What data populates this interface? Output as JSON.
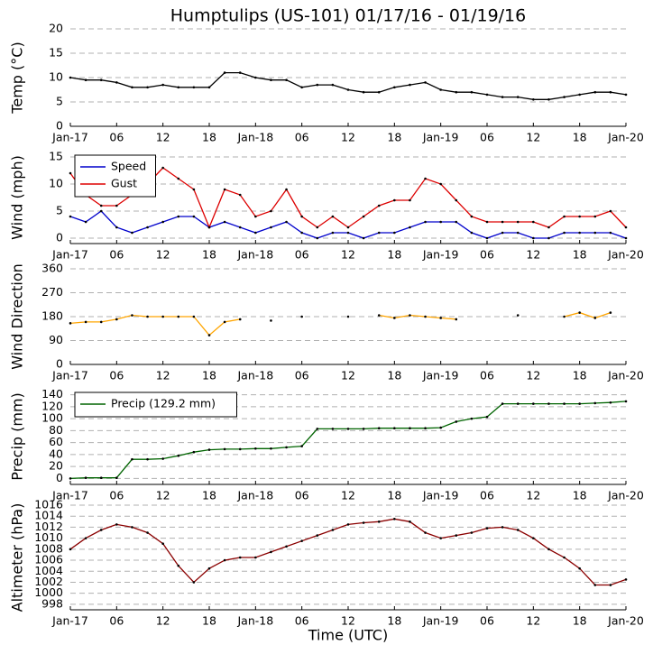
{
  "title": "Humptulips (US-101) 01/17/16 - 01/19/16",
  "chart_data": [
    {
      "type": "line",
      "ylabel": "Temp (°C)",
      "ylim": [
        0,
        20
      ],
      "yticks": [
        0,
        5,
        10,
        15,
        20
      ],
      "grid": true,
      "xlim": [
        0,
        72
      ],
      "xticks": [
        {
          "value": 0,
          "label": "Jan-17"
        },
        {
          "value": 6,
          "label": "06"
        },
        {
          "value": 12,
          "label": "12"
        },
        {
          "value": 18,
          "label": "18"
        },
        {
          "value": 24,
          "label": "Jan-18"
        },
        {
          "value": 30,
          "label": "06"
        },
        {
          "value": 36,
          "label": "12"
        },
        {
          "value": 42,
          "label": "18"
        },
        {
          "value": 48,
          "label": "Jan-19"
        },
        {
          "value": 54,
          "label": "06"
        },
        {
          "value": 60,
          "label": "12"
        },
        {
          "value": 66,
          "label": "18"
        },
        {
          "value": 72,
          "label": "Jan-20"
        }
      ],
      "x": [
        0,
        2,
        4,
        6,
        8,
        10,
        12,
        14,
        16,
        18,
        20,
        22,
        24,
        26,
        28,
        30,
        32,
        34,
        36,
        38,
        40,
        42,
        44,
        46,
        48,
        50,
        52,
        54,
        56,
        58,
        60,
        62,
        64,
        66,
        68,
        70,
        72
      ],
      "series": [
        {
          "color": "#000000",
          "values": [
            10,
            9.5,
            9.5,
            9,
            8,
            8,
            8.5,
            8,
            8,
            8,
            11,
            11,
            10,
            9.5,
            9.5,
            8,
            8.5,
            8.5,
            7.5,
            7,
            7,
            8,
            8.5,
            9,
            7.5,
            7,
            7,
            6.5,
            6,
            6,
            5.5,
            5.5,
            6,
            6.5,
            7,
            7,
            6.5
          ]
        }
      ]
    },
    {
      "type": "line",
      "ylabel": "Wind (mph)",
      "ylim": [
        -1,
        16
      ],
      "yticks": [
        0,
        5,
        10,
        15
      ],
      "grid": true,
      "xlim": [
        0,
        72
      ],
      "legend": "upper left",
      "xticks": [
        {
          "value": 0,
          "label": "Jan-17"
        },
        {
          "value": 6,
          "label": "06"
        },
        {
          "value": 12,
          "label": "12"
        },
        {
          "value": 18,
          "label": "18"
        },
        {
          "value": 24,
          "label": "Jan-18"
        },
        {
          "value": 30,
          "label": "06"
        },
        {
          "value": 36,
          "label": "12"
        },
        {
          "value": 42,
          "label": "18"
        },
        {
          "value": 48,
          "label": "Jan-19"
        },
        {
          "value": 54,
          "label": "06"
        },
        {
          "value": 60,
          "label": "12"
        },
        {
          "value": 66,
          "label": "18"
        },
        {
          "value": 72,
          "label": "Jan-20"
        }
      ],
      "x": [
        0,
        2,
        4,
        6,
        8,
        10,
        12,
        14,
        16,
        18,
        20,
        22,
        24,
        26,
        28,
        30,
        32,
        34,
        36,
        38,
        40,
        42,
        44,
        46,
        48,
        50,
        52,
        54,
        56,
        58,
        60,
        62,
        64,
        66,
        68,
        70,
        72
      ],
      "series": [
        {
          "name": "Speed",
          "color": "#0000cc",
          "values": [
            4,
            3,
            5,
            2,
            1,
            2,
            3,
            4,
            4,
            2,
            3,
            2,
            1,
            2,
            3,
            1,
            0,
            1,
            1,
            0,
            1,
            1,
            2,
            3,
            3,
            3,
            1,
            0,
            1,
            1,
            0,
            0,
            1,
            1,
            1,
            1,
            0
          ]
        },
        {
          "name": "Gust",
          "color": "#dd0000",
          "values": [
            12,
            8,
            6,
            6,
            8,
            10,
            13,
            11,
            9,
            2,
            9,
            8,
            4,
            5,
            9,
            4,
            2,
            4,
            2,
            4,
            6,
            7,
            7,
            11,
            10,
            7,
            4,
            3,
            3,
            3,
            3,
            2,
            4,
            4,
            4,
            5,
            2
          ]
        }
      ]
    },
    {
      "type": "line",
      "ylabel": "Wind Direction",
      "ylim": [
        0,
        360
      ],
      "yticks": [
        0,
        90,
        180,
        270,
        360
      ],
      "grid": true,
      "xlim": [
        0,
        72
      ],
      "xticks": [
        {
          "value": 0,
          "label": "Jan-17"
        },
        {
          "value": 6,
          "label": "06"
        },
        {
          "value": 12,
          "label": "12"
        },
        {
          "value": 18,
          "label": "18"
        },
        {
          "value": 24,
          "label": "Jan-18"
        },
        {
          "value": 30,
          "label": "06"
        },
        {
          "value": 36,
          "label": "12"
        },
        {
          "value": 42,
          "label": "18"
        },
        {
          "value": 48,
          "label": "Jan-19"
        },
        {
          "value": 54,
          "label": "06"
        },
        {
          "value": 60,
          "label": "12"
        },
        {
          "value": 66,
          "label": "18"
        },
        {
          "value": 72,
          "label": "Jan-20"
        }
      ],
      "x": [
        0,
        2,
        4,
        6,
        8,
        10,
        12,
        14,
        16,
        18,
        20,
        22,
        24,
        26,
        28,
        30,
        32,
        34,
        36,
        38,
        40,
        42,
        44,
        46,
        48,
        50,
        52,
        54,
        56,
        58,
        60,
        62,
        64,
        66,
        68,
        70,
        72
      ],
      "series": [
        {
          "color": "#ffa500",
          "values": [
            155,
            160,
            160,
            170,
            185,
            180,
            180,
            180,
            180,
            110,
            160,
            170,
            null,
            165,
            null,
            180,
            null,
            null,
            180,
            null,
            185,
            175,
            185,
            180,
            175,
            170,
            null,
            null,
            null,
            185,
            null,
            null,
            180,
            195,
            175,
            195,
            null
          ]
        }
      ]
    },
    {
      "type": "line",
      "ylabel": "Precip (mm)",
      "ylim": [
        -10,
        150
      ],
      "yticks": [
        0,
        20,
        40,
        60,
        80,
        100,
        120,
        140
      ],
      "grid": true,
      "xlim": [
        0,
        72
      ],
      "legend": "upper left",
      "xticks": [
        {
          "value": 0,
          "label": "Jan-17"
        },
        {
          "value": 6,
          "label": "06"
        },
        {
          "value": 12,
          "label": "12"
        },
        {
          "value": 18,
          "label": "18"
        },
        {
          "value": 24,
          "label": "Jan-18"
        },
        {
          "value": 30,
          "label": "06"
        },
        {
          "value": 36,
          "label": "12"
        },
        {
          "value": 42,
          "label": "18"
        },
        {
          "value": 48,
          "label": "Jan-19"
        },
        {
          "value": 54,
          "label": "06"
        },
        {
          "value": 60,
          "label": "12"
        },
        {
          "value": 66,
          "label": "18"
        },
        {
          "value": 72,
          "label": "Jan-20"
        }
      ],
      "x": [
        0,
        2,
        4,
        6,
        8,
        10,
        12,
        14,
        16,
        18,
        20,
        22,
        24,
        26,
        28,
        30,
        32,
        34,
        36,
        38,
        40,
        42,
        44,
        46,
        48,
        50,
        52,
        54,
        56,
        58,
        60,
        62,
        64,
        66,
        68,
        70,
        72
      ],
      "series": [
        {
          "name": "Precip (129.2 mm)",
          "color": "#006400",
          "values": [
            0,
            1,
            1,
            1,
            32,
            32,
            33,
            38,
            44,
            48,
            49,
            49,
            50,
            50,
            52,
            54,
            83,
            83,
            83,
            83,
            84,
            84,
            84,
            84,
            85,
            95,
            100,
            103,
            125,
            125,
            125,
            125,
            125,
            125,
            126,
            127,
            129
          ]
        }
      ]
    },
    {
      "type": "line",
      "ylabel": "Altimeter (hPa)",
      "xlabel": "Time (UTC)",
      "ylim": [
        997,
        1016
      ],
      "yticks": [
        998,
        1000,
        1002,
        1004,
        1006,
        1008,
        1010,
        1012,
        1014,
        1016
      ],
      "grid": true,
      "xlim": [
        0,
        72
      ],
      "xticks": [
        {
          "value": 0,
          "label": "Jan-17"
        },
        {
          "value": 6,
          "label": "06"
        },
        {
          "value": 12,
          "label": "12"
        },
        {
          "value": 18,
          "label": "18"
        },
        {
          "value": 24,
          "label": "Jan-18"
        },
        {
          "value": 30,
          "label": "06"
        },
        {
          "value": 36,
          "label": "12"
        },
        {
          "value": 42,
          "label": "18"
        },
        {
          "value": 48,
          "label": "Jan-19"
        },
        {
          "value": 54,
          "label": "06"
        },
        {
          "value": 60,
          "label": "12"
        },
        {
          "value": 66,
          "label": "18"
        },
        {
          "value": 72,
          "label": "Jan-20"
        }
      ],
      "x": [
        0,
        2,
        4,
        6,
        8,
        10,
        12,
        14,
        16,
        18,
        20,
        22,
        24,
        26,
        28,
        30,
        32,
        34,
        36,
        38,
        40,
        42,
        44,
        46,
        48,
        50,
        52,
        54,
        56,
        58,
        60,
        62,
        64,
        66,
        68,
        70,
        72
      ],
      "series": [
        {
          "color": "#8b0000",
          "values": [
            1008,
            1010,
            1011.5,
            1012.5,
            1012,
            1011,
            1009,
            1005,
            1002,
            1004.5,
            1006,
            1006.5,
            1006.5,
            1007.5,
            1008.5,
            1009.5,
            1010.5,
            1011.5,
            1012.5,
            1012.8,
            1013,
            1013.5,
            1013,
            1011,
            1010,
            1010.5,
            1011,
            1011.8,
            1012,
            1011.5,
            1010,
            1008,
            1006.5,
            1004.5,
            1001.5,
            1001.5,
            1002.5
          ]
        }
      ]
    }
  ]
}
